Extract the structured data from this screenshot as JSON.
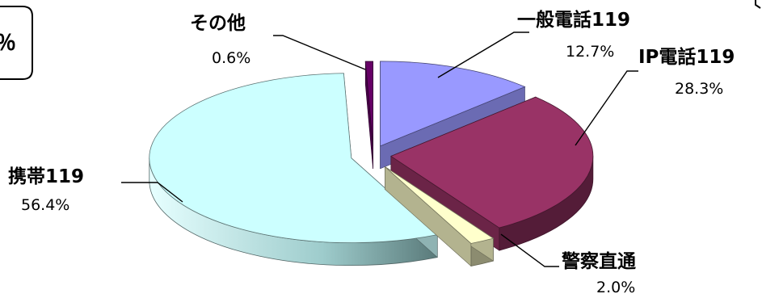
{
  "chart_data": {
    "type": "pie",
    "title": "",
    "slices": [
      {
        "name": "一般電話119",
        "value": 12.7,
        "label": "12.7%",
        "color": "#9999ff"
      },
      {
        "name": "IP電話119",
        "value": 28.3,
        "label": "28.3%",
        "color": "#993366"
      },
      {
        "name": "警察直通",
        "value": 2.0,
        "label": "2.0%",
        "color": "#ffffcc"
      },
      {
        "name": "携帯119",
        "value": 56.4,
        "label": "56.4%",
        "color": "#ccffff"
      },
      {
        "name": "その他",
        "value": 0.6,
        "label": "0.6%",
        "color": "#660066"
      }
    ],
    "legend": "none",
    "style": "3d-exploded"
  },
  "frame": {
    "text": "％"
  }
}
